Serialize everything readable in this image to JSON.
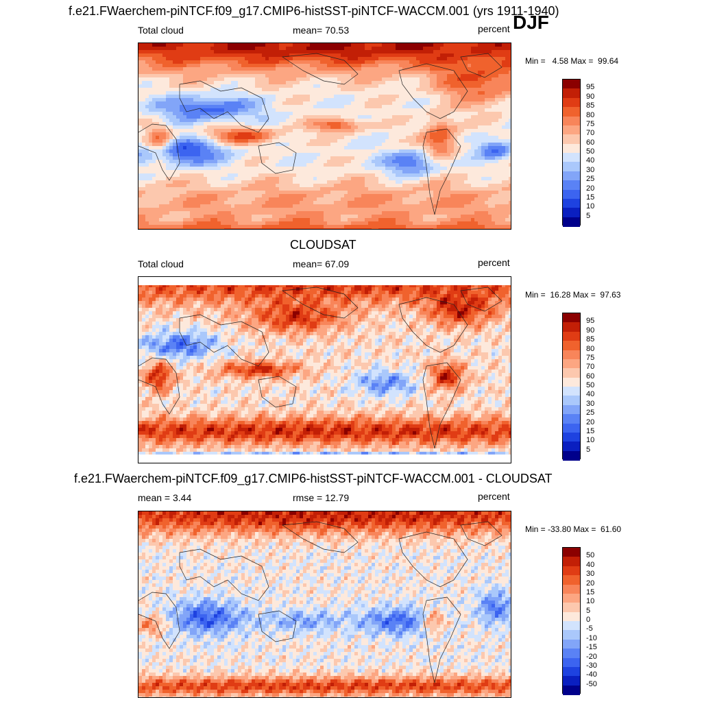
{
  "header": {
    "top_title": "f.e21.FWaerchem-piNTCF.f09_g17.CMIP6-histSST-piNTCF-WACCM.001 (yrs 1911-1940)",
    "season": "DJF"
  },
  "palette": {
    "abs": [
      "#00008b",
      "#0a1fc0",
      "#1e42e0",
      "#3c64f0",
      "#5a82f5",
      "#82a5f8",
      "#aac8fb",
      "#d2e3fd",
      "#fde9dc",
      "#fcc8ae",
      "#fca682",
      "#f8855a",
      "#f0622d",
      "#e03c14",
      "#c21f06",
      "#8b0000"
    ],
    "diff": [
      "#00008b",
      "#0a1fc0",
      "#1e42e0",
      "#3c64f0",
      "#5a82f5",
      "#82a5f8",
      "#aac8fb",
      "#d2e3fd",
      "#fde9dc",
      "#fcc8ae",
      "#fca682",
      "#f8855a",
      "#f0622d",
      "#e03c14",
      "#c21f06",
      "#8b0000"
    ]
  },
  "chart_data": [
    {
      "type": "heatmap",
      "title": "f.e21.FWaerchem-piNTCF.f09_g17.CMIP6-histSST-piNTCF-WACCM.001 (yrs 1911-1940)",
      "left_label": "Total cloud",
      "center_label": "mean=  70.53",
      "units": "percent",
      "min_max": "Min =   4.58 Max =  99.64",
      "mean": 70.53,
      "min": 4.58,
      "max": 99.64,
      "colorbar_levels": [
        "95",
        "90",
        "85",
        "80",
        "75",
        "70",
        "60",
        "50",
        "40",
        "30",
        "25",
        "20",
        "15",
        "10",
        "5"
      ]
    },
    {
      "type": "heatmap",
      "title": "CLOUDSAT",
      "left_label": "Total cloud",
      "center_label": "mean=  67.09",
      "units": "percent",
      "min_max": "Min =  16.28 Max =  97.63",
      "mean": 67.09,
      "min": 16.28,
      "max": 97.63,
      "colorbar_levels": [
        "95",
        "90",
        "85",
        "80",
        "75",
        "70",
        "60",
        "50",
        "40",
        "30",
        "25",
        "20",
        "15",
        "10",
        "5"
      ]
    },
    {
      "type": "heatmap",
      "title": "f.e21.FWaerchem-piNTCF.f09_g17.CMIP6-histSST-piNTCF-WACCM.001 - CLOUDSAT",
      "left_label": "mean =   3.44",
      "center_label": "rmse =  12.79",
      "units": "percent",
      "min_max": "Min = -33.80 Max =  61.60",
      "mean": 3.44,
      "rmse": 12.79,
      "min": -33.8,
      "max": 61.6,
      "colorbar_levels": [
        "50",
        "40",
        "30",
        "20",
        "15",
        "10",
        "5",
        "0",
        "-5",
        "-10",
        "-15",
        "-20",
        "-30",
        "-40",
        "-50"
      ]
    }
  ]
}
